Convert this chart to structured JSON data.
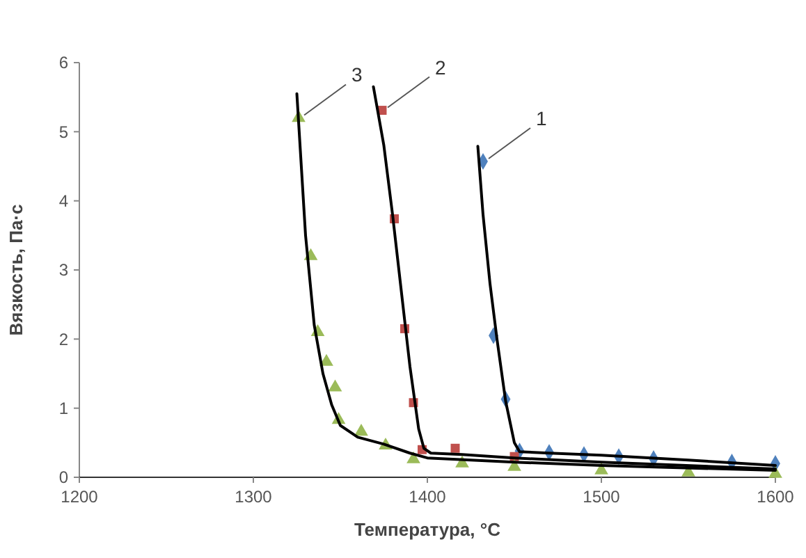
{
  "chart_data": {
    "type": "scatter",
    "xlabel": "Температура, °С",
    "ylabel": "Вязкость, Па·с",
    "xlim": [
      1200,
      1600
    ],
    "xticks": [
      1200,
      1300,
      1400,
      1500,
      1600
    ],
    "ylim": [
      0,
      6
    ],
    "yticks": [
      0,
      1,
      2,
      3,
      4,
      5,
      6
    ],
    "grid": false,
    "series": [
      {
        "name": "1",
        "color": "#4f81bd",
        "marker": "diamond",
        "x": [
          1432,
          1438,
          1445,
          1453,
          1470,
          1490,
          1510,
          1530,
          1550,
          1575,
          1600
        ],
        "values": [
          4.57,
          2.05,
          1.13,
          0.38,
          0.36,
          0.33,
          0.3,
          0.27,
          null,
          0.22,
          0.2
        ]
      },
      {
        "name": "2",
        "color": "#c0504d",
        "marker": "square",
        "x": [
          1374,
          1381,
          1387,
          1392,
          1397,
          1416,
          1450
        ],
        "values": [
          5.31,
          3.74,
          2.15,
          1.08,
          0.4,
          0.42,
          0.3
        ]
      },
      {
        "name": "3",
        "color": "#9bbb59",
        "marker": "triangle",
        "x": [
          1326,
          1333,
          1337,
          1342,
          1347,
          1349,
          1362,
          1376,
          1392,
          1420,
          1450,
          1500,
          1550,
          1600
        ],
        "values": [
          5.2,
          3.2,
          2.1,
          1.67,
          1.3,
          0.83,
          0.66,
          0.46,
          0.26,
          0.2,
          0.15,
          0.1,
          0.07,
          0.05
        ]
      },
      {
        "type": "line",
        "color": "#000000",
        "marker": "none",
        "x": [
          1429,
          1432,
          1436,
          1440,
          1445,
          1450,
          1453,
          1470,
          1500,
          1550,
          1600
        ],
        "values": [
          4.79,
          3.8,
          2.8,
          2.0,
          1.1,
          0.5,
          0.37,
          0.35,
          0.32,
          0.25,
          0.17
        ]
      },
      {
        "type": "line",
        "color": "#000000",
        "marker": "none",
        "x": [
          1369,
          1375,
          1380,
          1385,
          1390,
          1395,
          1398,
          1402,
          1420,
          1450,
          1500,
          1600
        ],
        "values": [
          5.65,
          4.8,
          3.8,
          2.7,
          1.6,
          0.7,
          0.42,
          0.35,
          0.33,
          0.28,
          0.22,
          0.12
        ]
      },
      {
        "type": "line",
        "color": "#000000",
        "marker": "none",
        "x": [
          1325,
          1330,
          1335,
          1340,
          1345,
          1350,
          1360,
          1375,
          1390,
          1400,
          1450,
          1500,
          1600
        ],
        "values": [
          5.55,
          3.5,
          2.2,
          1.5,
          1.05,
          0.75,
          0.58,
          0.48,
          0.35,
          0.28,
          0.22,
          0.17,
          0.1
        ]
      }
    ]
  }
}
